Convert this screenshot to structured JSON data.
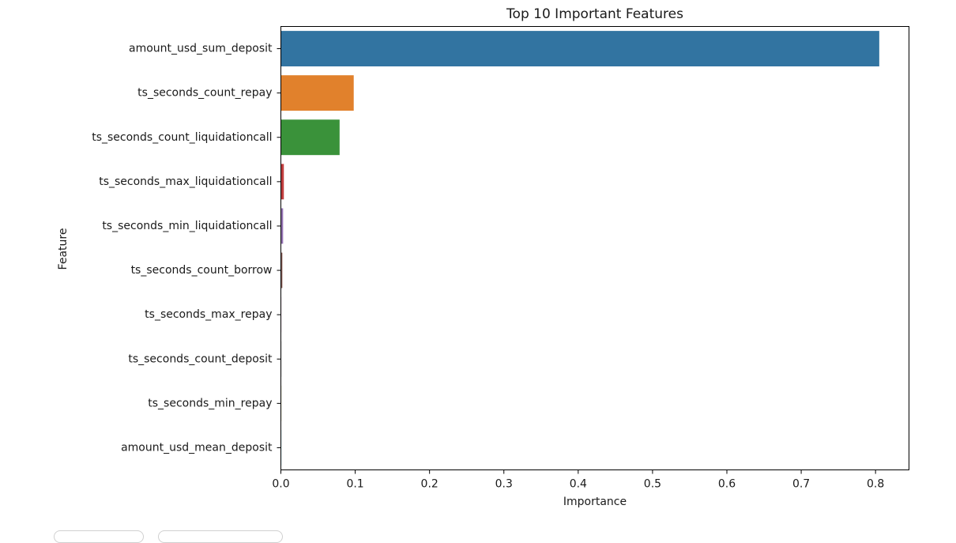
{
  "chart_data": {
    "type": "bar",
    "orientation": "horizontal",
    "title": "Top 10 Important Features",
    "xlabel": "Importance",
    "ylabel": "Feature",
    "categories": [
      "amount_usd_sum_deposit",
      "ts_seconds_count_repay",
      "ts_seconds_count_liquidationcall",
      "ts_seconds_max_liquidationcall",
      "ts_seconds_min_liquidationcall",
      "ts_seconds_count_borrow",
      "ts_seconds_max_repay",
      "ts_seconds_count_deposit",
      "ts_seconds_min_repay",
      "amount_usd_mean_deposit"
    ],
    "values": [
      0.805,
      0.098,
      0.079,
      0.004,
      0.003,
      0.002,
      0.0003,
      0.0002,
      0.0001,
      0.0001
    ],
    "colors": [
      "#3274a1",
      "#e1812c",
      "#3a923a",
      "#c03d3e",
      "#9372b2",
      "#845b53",
      "#d684bd",
      "#7f7f7f",
      "#a9aa35",
      "#2fbccd"
    ],
    "xlim": [
      0,
      0.845
    ],
    "xticks": [
      0.0,
      0.1,
      0.2,
      0.3,
      0.4,
      0.5,
      0.6,
      0.7,
      0.8
    ],
    "xtick_labels": [
      "0.0",
      "0.1",
      "0.2",
      "0.3",
      "0.4",
      "0.5",
      "0.6",
      "0.7",
      "0.8"
    ],
    "grid": false,
    "legend": "none"
  }
}
